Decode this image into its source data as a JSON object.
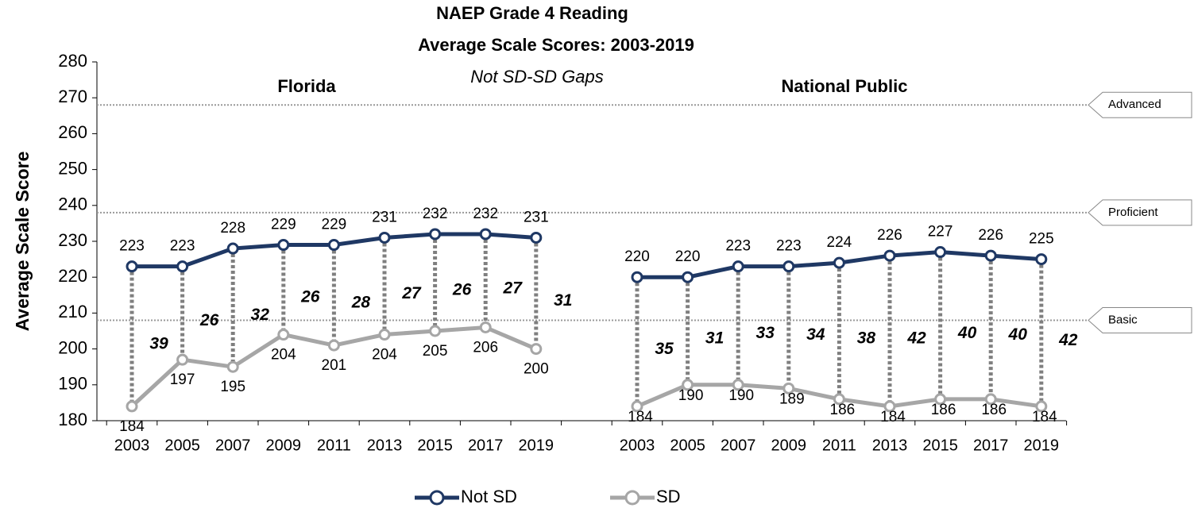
{
  "chart_data": {
    "type": "line",
    "title": "NAEP Grade 4 Reading",
    "subtitle": "Average Scale Scores: 2003-2019",
    "annotation": "Not SD-SD Gaps",
    "ylabel": "Average Scale Score",
    "panels": [
      "Florida",
      "National Public"
    ],
    "categories": [
      "2003",
      "2005",
      "2007",
      "2009",
      "2011",
      "2013",
      "2015",
      "2017",
      "2019",
      null,
      "2003",
      "2005",
      "2007",
      "2009",
      "2011",
      "2013",
      "2015",
      "2017",
      "2019"
    ],
    "series": [
      {
        "name": "Not SD",
        "color": "#1f3864",
        "values": [
          223,
          223,
          228,
          229,
          229,
          231,
          232,
          232,
          231,
          null,
          220,
          220,
          223,
          223,
          224,
          226,
          227,
          226,
          225
        ]
      },
      {
        "name": "SD",
        "color": "#a6a6a6",
        "values": [
          184,
          197,
          195,
          204,
          201,
          204,
          205,
          206,
          200,
          null,
          184,
          190,
          190,
          189,
          186,
          184,
          186,
          186,
          184
        ]
      }
    ],
    "gaps": [
      39,
      26,
      32,
      26,
      28,
      27,
      26,
      27,
      31,
      null,
      35,
      31,
      33,
      34,
      38,
      42,
      40,
      40,
      42
    ],
    "reference_lines": [
      {
        "label": "Advanced",
        "value": 268
      },
      {
        "label": "Proficient",
        "value": 238
      },
      {
        "label": "Basic",
        "value": 208
      }
    ],
    "ylim": [
      180,
      280
    ],
    "yticks": [
      180,
      190,
      200,
      210,
      220,
      230,
      240,
      250,
      260,
      270,
      280
    ]
  }
}
